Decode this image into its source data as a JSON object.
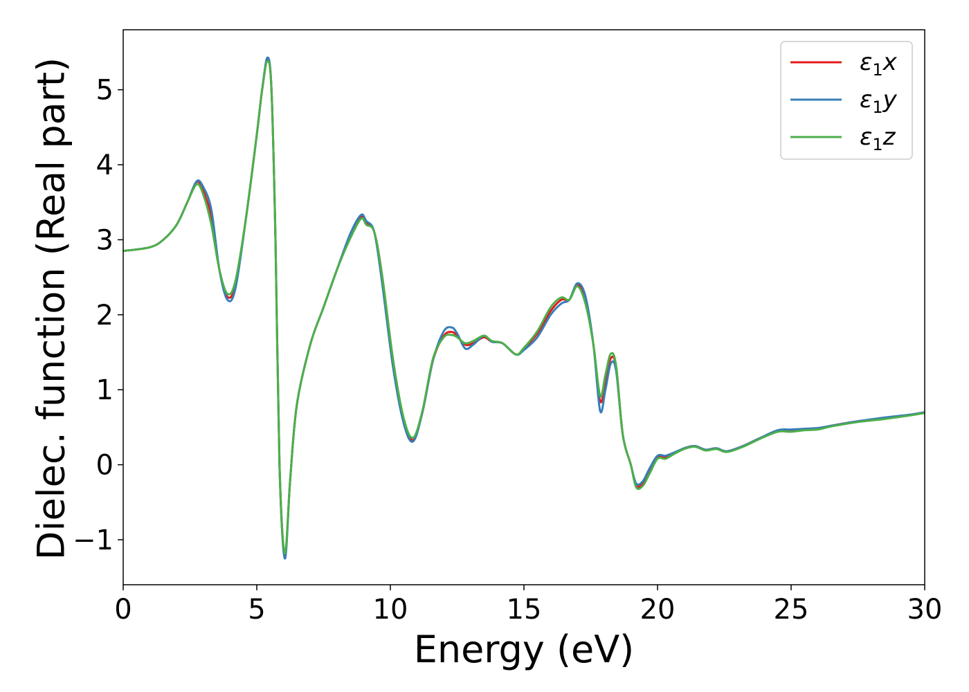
{
  "chart_data": {
    "type": "line",
    "xlabel": "Energy (eV)",
    "ylabel": "Dielec. function (Real part)",
    "xlim": [
      0,
      30
    ],
    "ylim": [
      -1.6,
      5.8
    ],
    "xticks": [
      0,
      5,
      10,
      15,
      20,
      25,
      30
    ],
    "xtick_labels": [
      "0",
      "5",
      "10",
      "15",
      "20",
      "25",
      "30"
    ],
    "yticks": [
      -1,
      0,
      1,
      2,
      3,
      4,
      5
    ],
    "ytick_labels": [
      "−1",
      "0",
      "1",
      "2",
      "3",
      "4",
      "5"
    ],
    "grid": false,
    "legend_position": "top-right",
    "series": [
      {
        "name": "ε₁x",
        "legend_base": "ε",
        "legend_sub": "1",
        "legend_suffix": "x",
        "color": "#e41a1c",
        "x": [
          0,
          1,
          1.5,
          2,
          2.4,
          2.75,
          3,
          3.3,
          3.6,
          3.9,
          4.2,
          4.6,
          5,
          5.2,
          5.4,
          5.55,
          5.7,
          5.85,
          6.05,
          6.25,
          6.5,
          7,
          7.5,
          8,
          8.5,
          8.9,
          9.1,
          9.4,
          9.7,
          10.1,
          10.5,
          10.85,
          11.2,
          11.6,
          12,
          12.3,
          12.5,
          12.8,
          13.1,
          13.5,
          13.8,
          14.2,
          14.7,
          15,
          15.5,
          16,
          16.4,
          16.7,
          17,
          17.3,
          17.6,
          17.85,
          18.05,
          18.25,
          18.45,
          18.7,
          19,
          19.2,
          19.45,
          19.7,
          20,
          20.3,
          20.6,
          21,
          21.4,
          21.8,
          22.2,
          22.6,
          23.2,
          23.8,
          24.5,
          25,
          25.5,
          26,
          26.5,
          27.5,
          28.5,
          29.5,
          30
        ],
        "y": [
          2.85,
          2.9,
          3,
          3.2,
          3.5,
          3.77,
          3.65,
          3.3,
          2.6,
          2.24,
          2.4,
          3.3,
          4.4,
          5,
          5.4,
          5,
          3,
          0,
          -1.2,
          -0.2,
          0.8,
          1.6,
          2.1,
          2.6,
          3.05,
          3.3,
          3.22,
          3.1,
          2.5,
          1.4,
          0.6,
          0.33,
          0.7,
          1.4,
          1.72,
          1.77,
          1.72,
          1.6,
          1.62,
          1.7,
          1.64,
          1.62,
          1.47,
          1.55,
          1.75,
          2.05,
          2.2,
          2.2,
          2.4,
          2.2,
          1.6,
          0.85,
          1.1,
          1.42,
          1.3,
          0.4,
          0,
          -0.28,
          -0.25,
          -0.1,
          0.1,
          0.1,
          0.15,
          0.22,
          0.25,
          0.2,
          0.22,
          0.18,
          0.25,
          0.35,
          0.45,
          0.45,
          0.47,
          0.48,
          0.52,
          0.58,
          0.62,
          0.67,
          0.7
        ]
      },
      {
        "name": "ε₁y",
        "legend_base": "ε",
        "legend_sub": "1",
        "legend_suffix": "y",
        "color": "#377eb8",
        "x": [
          0,
          1,
          1.5,
          2,
          2.4,
          2.75,
          3,
          3.3,
          3.6,
          3.9,
          4.2,
          4.6,
          5,
          5.2,
          5.4,
          5.55,
          5.7,
          5.85,
          6.05,
          6.25,
          6.5,
          7,
          7.5,
          8,
          8.5,
          8.9,
          9.1,
          9.4,
          9.7,
          10.1,
          10.5,
          10.85,
          11.2,
          11.6,
          12,
          12.3,
          12.5,
          12.8,
          13.1,
          13.5,
          13.8,
          14.2,
          14.7,
          15,
          15.5,
          16,
          16.4,
          16.7,
          17,
          17.3,
          17.6,
          17.85,
          18.05,
          18.25,
          18.45,
          18.7,
          19,
          19.2,
          19.45,
          19.7,
          20,
          20.3,
          20.6,
          21,
          21.4,
          21.8,
          22.2,
          22.6,
          23.2,
          23.8,
          24.5,
          25,
          25.5,
          26,
          26.5,
          27.5,
          28.5,
          29.5,
          30
        ],
        "y": [
          2.85,
          2.9,
          3,
          3.2,
          3.5,
          3.78,
          3.7,
          3.4,
          2.6,
          2.2,
          2.35,
          3.3,
          4.4,
          5,
          5.43,
          5,
          3,
          0,
          -1.25,
          -0.2,
          0.8,
          1.6,
          2.1,
          2.6,
          3.08,
          3.33,
          3.25,
          3.1,
          2.4,
          1.3,
          0.55,
          0.31,
          0.7,
          1.4,
          1.78,
          1.83,
          1.75,
          1.55,
          1.6,
          1.72,
          1.64,
          1.62,
          1.47,
          1.53,
          1.7,
          2,
          2.15,
          2.2,
          2.42,
          2.25,
          1.6,
          0.72,
          1,
          1.35,
          1.25,
          0.4,
          0,
          -0.25,
          -0.22,
          -0.05,
          0.12,
          0.12,
          0.16,
          0.22,
          0.25,
          0.2,
          0.22,
          0.18,
          0.25,
          0.35,
          0.46,
          0.47,
          0.48,
          0.49,
          0.52,
          0.58,
          0.63,
          0.67,
          0.7
        ]
      },
      {
        "name": "ε₁z",
        "legend_base": "ε",
        "legend_sub": "1",
        "legend_suffix": "z",
        "color": "#4daf4a",
        "x": [
          0,
          1,
          1.5,
          2,
          2.4,
          2.75,
          3,
          3.3,
          3.6,
          3.9,
          4.2,
          4.6,
          5,
          5.2,
          5.4,
          5.55,
          5.7,
          5.85,
          6.05,
          6.25,
          6.5,
          7,
          7.5,
          8,
          8.5,
          8.9,
          9.1,
          9.4,
          9.7,
          10.1,
          10.5,
          10.85,
          11.2,
          11.6,
          12,
          12.3,
          12.5,
          12.8,
          13.1,
          13.5,
          13.8,
          14.2,
          14.7,
          15,
          15.5,
          16,
          16.4,
          16.7,
          17,
          17.3,
          17.6,
          17.85,
          18.05,
          18.25,
          18.45,
          18.7,
          19,
          19.2,
          19.45,
          19.7,
          20,
          20.3,
          20.6,
          21,
          21.4,
          21.8,
          22.2,
          22.6,
          23.2,
          23.8,
          24.5,
          25,
          25.5,
          26,
          26.5,
          27.5,
          28.5,
          29.5,
          30
        ],
        "y": [
          2.85,
          2.9,
          3,
          3.2,
          3.5,
          3.74,
          3.6,
          3.2,
          2.6,
          2.28,
          2.45,
          3.3,
          4.4,
          5,
          5.38,
          5,
          3,
          0,
          -1.18,
          -0.2,
          0.8,
          1.6,
          2.1,
          2.6,
          3.02,
          3.28,
          3.2,
          3.1,
          2.5,
          1.4,
          0.62,
          0.36,
          0.72,
          1.42,
          1.7,
          1.73,
          1.7,
          1.62,
          1.65,
          1.72,
          1.65,
          1.62,
          1.47,
          1.56,
          1.78,
          2.1,
          2.23,
          2.2,
          2.38,
          2.15,
          1.6,
          0.92,
          1.2,
          1.48,
          1.32,
          0.4,
          0,
          -0.3,
          -0.28,
          -0.12,
          0.08,
          0.08,
          0.14,
          0.21,
          0.24,
          0.19,
          0.21,
          0.17,
          0.24,
          0.34,
          0.44,
          0.44,
          0.46,
          0.47,
          0.51,
          0.57,
          0.61,
          0.66,
          0.69
        ]
      }
    ]
  }
}
